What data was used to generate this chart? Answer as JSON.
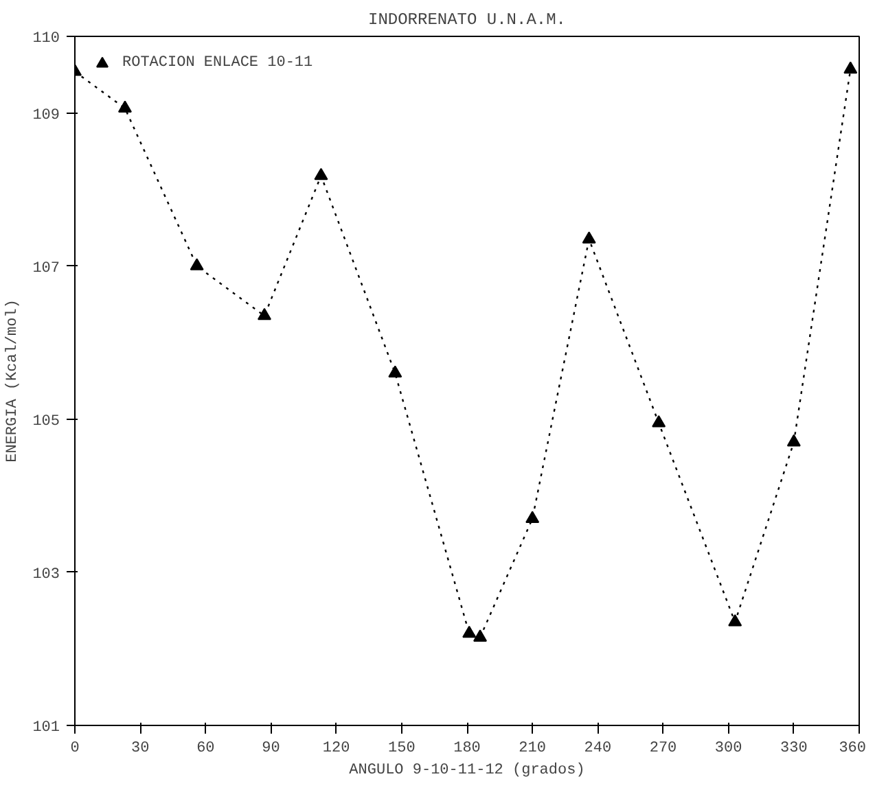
{
  "chart_data": {
    "type": "line",
    "title": "INDORRENATO U.N.A.M.",
    "xlabel": "ANGULO 9-10-11-12 (grados)",
    "ylabel": "ENERGIA (Kcal/mol)",
    "xlim": [
      0,
      360
    ],
    "xticks": [
      0,
      30,
      60,
      90,
      120,
      150,
      180,
      210,
      240,
      270,
      300,
      330,
      360
    ],
    "ylim": [
      101,
      110
    ],
    "yticks": [
      101,
      103,
      105,
      107,
      109,
      110
    ],
    "marker": "triangle",
    "line_style": "dotted",
    "grid": false,
    "legend": "top left",
    "series": [
      {
        "name": "ROTACION ENLACE 10-11",
        "color": "#000000",
        "x": [
          0,
          23,
          56,
          87,
          113,
          147,
          181,
          186,
          210,
          236,
          268,
          303,
          330,
          356
        ],
        "values": [
          109.54,
          109.06,
          107.0,
          106.35,
          108.18,
          105.6,
          102.2,
          102.15,
          103.7,
          107.35,
          104.95,
          102.35,
          104.7,
          109.57
        ]
      }
    ]
  }
}
